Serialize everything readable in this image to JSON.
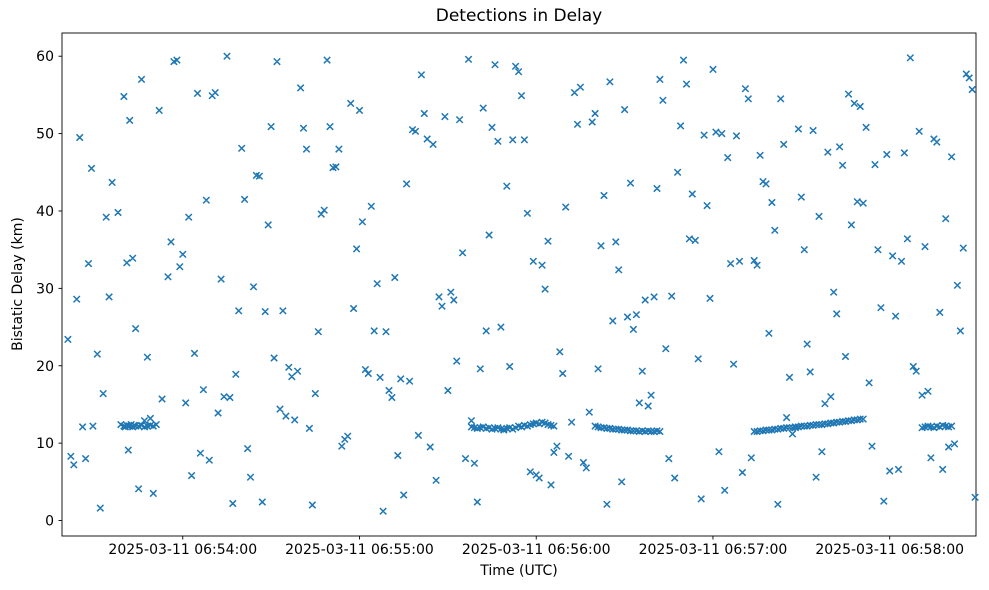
{
  "chart_data": {
    "type": "scatter",
    "title": "Detections in Delay",
    "xlabel": "Time (UTC)",
    "ylabel": "Bistatic Delay (km)",
    "marker": "x",
    "marker_color": "#1f77b4",
    "grid": false,
    "legend": null,
    "x_unit": "seconds since 2025-03-11 06:53:00 UTC",
    "xlim": [
      19,
      329.3
    ],
    "ylim": [
      -2,
      63
    ],
    "xticks": [
      {
        "value": 60,
        "label": "2025-03-11 06:54:00"
      },
      {
        "value": 120,
        "label": "2025-03-11 06:55:00"
      },
      {
        "value": 180,
        "label": "2025-03-11 06:56:00"
      },
      {
        "value": 240,
        "label": "2025-03-11 06:57:00"
      },
      {
        "value": 300,
        "label": "2025-03-11 06:58:00"
      }
    ],
    "yticks": [
      0,
      10,
      20,
      30,
      40,
      50,
      60
    ],
    "points": [
      [
        21,
        23.4
      ],
      [
        22,
        8.3
      ],
      [
        23,
        7.2
      ],
      [
        24,
        28.6
      ],
      [
        25,
        49.5
      ],
      [
        26,
        12.1
      ],
      [
        27,
        8.0
      ],
      [
        28,
        33.2
      ],
      [
        29,
        45.5
      ],
      [
        29.5,
        12.2
      ],
      [
        31,
        21.5
      ],
      [
        32,
        1.6
      ],
      [
        33,
        16.4
      ],
      [
        34,
        39.2
      ],
      [
        35,
        28.9
      ],
      [
        36,
        43.7
      ],
      [
        38,
        39.8
      ],
      [
        39,
        12.4
      ],
      [
        40,
        54.8
      ],
      [
        41,
        33.3
      ],
      [
        41.5,
        9.1
      ],
      [
        42,
        51.7
      ],
      [
        43,
        33.9
      ],
      [
        44,
        24.8
      ],
      [
        45,
        4.1
      ],
      [
        46,
        57.0
      ],
      [
        47,
        12.9
      ],
      [
        48,
        21.1
      ],
      [
        49,
        13.2
      ],
      [
        50,
        3.5
      ],
      [
        52,
        53.0
      ],
      [
        53,
        15.7
      ],
      [
        55,
        31.5
      ],
      [
        56,
        36.0
      ],
      [
        57,
        59.3
      ],
      [
        58,
        59.5
      ],
      [
        59,
        32.8
      ],
      [
        60,
        34.4
      ],
      [
        61,
        15.2
      ],
      [
        62,
        39.2
      ],
      [
        63,
        5.8
      ],
      [
        64,
        21.6
      ],
      [
        65,
        55.2
      ],
      [
        66,
        8.7
      ],
      [
        67,
        16.9
      ],
      [
        68,
        41.4
      ],
      [
        69,
        7.8
      ],
      [
        70,
        54.9
      ],
      [
        71,
        55.3
      ],
      [
        72,
        13.9
      ],
      [
        73,
        31.2
      ],
      [
        74,
        16.0
      ],
      [
        75,
        60.0
      ],
      [
        76,
        15.9
      ],
      [
        77,
        2.2
      ],
      [
        78,
        18.9
      ],
      [
        79,
        27.1
      ],
      [
        80,
        48.1
      ],
      [
        81,
        41.5
      ],
      [
        82,
        9.3
      ],
      [
        83,
        5.6
      ],
      [
        84,
        30.2
      ],
      [
        85,
        44.6
      ],
      [
        86,
        44.5
      ],
      [
        87,
        2.4
      ],
      [
        88,
        27.0
      ],
      [
        89,
        38.2
      ],
      [
        90,
        50.9
      ],
      [
        91,
        21.0
      ],
      [
        92,
        59.3
      ],
      [
        93,
        14.4
      ],
      [
        94,
        27.1
      ],
      [
        95,
        13.5
      ],
      [
        96,
        19.8
      ],
      [
        97,
        18.6
      ],
      [
        98,
        13.0
      ],
      [
        99,
        19.3
      ],
      [
        100,
        55.9
      ],
      [
        101,
        50.7
      ],
      [
        102,
        48.0
      ],
      [
        103,
        11.9
      ],
      [
        104,
        2.0
      ],
      [
        105,
        16.4
      ],
      [
        106,
        24.4
      ],
      [
        107,
        39.6
      ],
      [
        108,
        40.1
      ],
      [
        109,
        59.5
      ],
      [
        110,
        50.9
      ],
      [
        111,
        45.6
      ],
      [
        112,
        45.7
      ],
      [
        113,
        48.0
      ],
      [
        114,
        9.6
      ],
      [
        115,
        10.5
      ],
      [
        116,
        10.9
      ],
      [
        117,
        53.9
      ],
      [
        118,
        27.4
      ],
      [
        119,
        35.1
      ],
      [
        120,
        53.0
      ],
      [
        121,
        38.6
      ],
      [
        122,
        19.5
      ],
      [
        123,
        19.0
      ],
      [
        124,
        40.6
      ],
      [
        125,
        24.5
      ],
      [
        126,
        30.6
      ],
      [
        127,
        18.5
      ],
      [
        128,
        1.2
      ],
      [
        129,
        24.4
      ],
      [
        130,
        16.8
      ],
      [
        131,
        15.9
      ],
      [
        132,
        31.4
      ],
      [
        133,
        8.4
      ],
      [
        134,
        18.3
      ],
      [
        135,
        3.3
      ],
      [
        136,
        43.5
      ],
      [
        137,
        18.0
      ],
      [
        138,
        50.5
      ],
      [
        139,
        50.3
      ],
      [
        140,
        11.0
      ],
      [
        141,
        57.6
      ],
      [
        142,
        52.6
      ],
      [
        143,
        49.3
      ],
      [
        144,
        9.5
      ],
      [
        145,
        48.6
      ],
      [
        146,
        5.2
      ],
      [
        147,
        28.9
      ],
      [
        148,
        27.7
      ],
      [
        149,
        52.2
      ],
      [
        150,
        16.8
      ],
      [
        151,
        29.5
      ],
      [
        152,
        28.5
      ],
      [
        153,
        20.6
      ],
      [
        154,
        51.8
      ],
      [
        155,
        34.6
      ],
      [
        156,
        8.0
      ],
      [
        157,
        59.6
      ],
      [
        158,
        12.9
      ],
      [
        159,
        7.4
      ],
      [
        160,
        2.4
      ],
      [
        161,
        19.6
      ],
      [
        162,
        53.3
      ],
      [
        163,
        24.5
      ],
      [
        164,
        36.9
      ],
      [
        165,
        50.8
      ],
      [
        166,
        58.9
      ],
      [
        167,
        49.0
      ],
      [
        168,
        25.0
      ],
      [
        169,
        11.8
      ],
      [
        170,
        43.2
      ],
      [
        171,
        19.9
      ],
      [
        172,
        49.2
      ],
      [
        173,
        58.7
      ],
      [
        174,
        58.0
      ],
      [
        175,
        54.9
      ],
      [
        176,
        49.2
      ],
      [
        177,
        39.7
      ],
      [
        178,
        6.3
      ],
      [
        179,
        33.5
      ],
      [
        180,
        5.9
      ],
      [
        181,
        5.5
      ],
      [
        182,
        33.0
      ],
      [
        183,
        29.9
      ],
      [
        184,
        36.1
      ],
      [
        185,
        4.6
      ],
      [
        186,
        8.8
      ],
      [
        187,
        9.6
      ],
      [
        188,
        21.8
      ],
      [
        189,
        19.0
      ],
      [
        190,
        40.5
      ],
      [
        191,
        8.3
      ],
      [
        192,
        12.7
      ],
      [
        193,
        55.3
      ],
      [
        194,
        51.2
      ],
      [
        195,
        56.0
      ],
      [
        196,
        7.5
      ],
      [
        197,
        6.8
      ],
      [
        198,
        14.0
      ],
      [
        199,
        51.5
      ],
      [
        200,
        52.6
      ],
      [
        201,
        19.6
      ],
      [
        202,
        35.5
      ],
      [
        203,
        42.0
      ],
      [
        204,
        2.1
      ],
      [
        205,
        56.7
      ],
      [
        206,
        25.8
      ],
      [
        207,
        36.0
      ],
      [
        208,
        32.4
      ],
      [
        209,
        5.0
      ],
      [
        210,
        53.1
      ],
      [
        211,
        26.3
      ],
      [
        212,
        43.6
      ],
      [
        213,
        24.7
      ],
      [
        214,
        26.6
      ],
      [
        215,
        15.2
      ],
      [
        216,
        19.3
      ],
      [
        217,
        28.5
      ],
      [
        218,
        14.8
      ],
      [
        219,
        16.2
      ],
      [
        220,
        28.9
      ],
      [
        221,
        42.9
      ],
      [
        222,
        57.0
      ],
      [
        223,
        54.3
      ],
      [
        224,
        22.2
      ],
      [
        225,
        8.0
      ],
      [
        226,
        29.0
      ],
      [
        227,
        5.5
      ],
      [
        228,
        45.0
      ],
      [
        229,
        51.0
      ],
      [
        230,
        59.5
      ],
      [
        231,
        56.4
      ],
      [
        232,
        36.4
      ],
      [
        233,
        42.2
      ],
      [
        234,
        36.2
      ],
      [
        235,
        20.9
      ],
      [
        236,
        2.8
      ],
      [
        237,
        49.8
      ],
      [
        238,
        40.7
      ],
      [
        239,
        28.7
      ],
      [
        240,
        58.3
      ],
      [
        241,
        50.2
      ],
      [
        242,
        8.9
      ],
      [
        243,
        50.0
      ],
      [
        244,
        3.9
      ],
      [
        245,
        46.9
      ],
      [
        246,
        33.2
      ],
      [
        247,
        20.2
      ],
      [
        248,
        49.7
      ],
      [
        249,
        33.5
      ],
      [
        250,
        6.2
      ],
      [
        251,
        55.8
      ],
      [
        252,
        54.5
      ],
      [
        253,
        8.1
      ],
      [
        254,
        33.6
      ],
      [
        255,
        33.0
      ],
      [
        256,
        47.2
      ],
      [
        257,
        43.8
      ],
      [
        258,
        43.5
      ],
      [
        259,
        24.2
      ],
      [
        260,
        41.1
      ],
      [
        261,
        37.5
      ],
      [
        262,
        2.1
      ],
      [
        263,
        54.5
      ],
      [
        264,
        48.6
      ],
      [
        265,
        13.3
      ],
      [
        266,
        18.5
      ],
      [
        267,
        11.2
      ],
      [
        268,
        12.0
      ],
      [
        269,
        50.6
      ],
      [
        270,
        41.8
      ],
      [
        271,
        35.0
      ],
      [
        272,
        22.8
      ],
      [
        273,
        19.2
      ],
      [
        274,
        50.4
      ],
      [
        275,
        5.6
      ],
      [
        276,
        39.3
      ],
      [
        277,
        8.9
      ],
      [
        278,
        15.1
      ],
      [
        279,
        47.6
      ],
      [
        280,
        16.0
      ],
      [
        281,
        29.5
      ],
      [
        282,
        26.7
      ],
      [
        283,
        48.3
      ],
      [
        284,
        45.9
      ],
      [
        285,
        21.2
      ],
      [
        286,
        55.1
      ],
      [
        287,
        38.2
      ],
      [
        288,
        53.9
      ],
      [
        289,
        41.2
      ],
      [
        290,
        53.5
      ],
      [
        291,
        41.0
      ],
      [
        292,
        50.8
      ],
      [
        293,
        17.8
      ],
      [
        294,
        9.6
      ],
      [
        295,
        46.0
      ],
      [
        296,
        35.0
      ],
      [
        297,
        27.5
      ],
      [
        298,
        2.5
      ],
      [
        299,
        47.3
      ],
      [
        300,
        6.4
      ],
      [
        301,
        34.2
      ],
      [
        302,
        26.4
      ],
      [
        303,
        6.6
      ],
      [
        304,
        33.5
      ],
      [
        305,
        47.5
      ],
      [
        306,
        36.4
      ],
      [
        307,
        59.8
      ],
      [
        308,
        19.9
      ],
      [
        309,
        19.3
      ],
      [
        310,
        50.3
      ],
      [
        311,
        16.2
      ],
      [
        312,
        35.4
      ],
      [
        313,
        16.7
      ],
      [
        314,
        8.1
      ],
      [
        315,
        49.3
      ],
      [
        316,
        48.9
      ],
      [
        317,
        26.9
      ],
      [
        318,
        6.6
      ],
      [
        319,
        39.0
      ],
      [
        320,
        9.5
      ],
      [
        321,
        47.0
      ],
      [
        322,
        9.9
      ],
      [
        323,
        30.4
      ],
      [
        324,
        24.5
      ],
      [
        325,
        35.2
      ],
      [
        326,
        57.7
      ],
      [
        327,
        57.2
      ],
      [
        328,
        55.7
      ],
      [
        329,
        3.0
      ],
      [
        40,
        12.2
      ],
      [
        40.5,
        12.1
      ],
      [
        41,
        12.3
      ],
      [
        41.5,
        12.2
      ],
      [
        42,
        12.2
      ],
      [
        42.5,
        12.4
      ],
      [
        43,
        12.1
      ],
      [
        43.5,
        12.3
      ],
      [
        44,
        12.2
      ],
      [
        45,
        12.2
      ],
      [
        46,
        12.3
      ],
      [
        47,
        12.1
      ],
      [
        48,
        12.2
      ],
      [
        49,
        12.3
      ],
      [
        50,
        12.2
      ],
      [
        51,
        12.4
      ],
      [
        158,
        12.1
      ],
      [
        159,
        12.0
      ],
      [
        160,
        11.9
      ],
      [
        161,
        12.0
      ],
      [
        162,
        12.1
      ],
      [
        163,
        11.9
      ],
      [
        164,
        12.0
      ],
      [
        165,
        11.8
      ],
      [
        166,
        11.9
      ],
      [
        167,
        12.0
      ],
      [
        168,
        11.8
      ],
      [
        169,
        11.7
      ],
      [
        170,
        11.9
      ],
      [
        171,
        12.0
      ],
      [
        172,
        11.8
      ],
      [
        173,
        12.0
      ],
      [
        174,
        12.2
      ],
      [
        175,
        12.1
      ],
      [
        176,
        12.3
      ],
      [
        177,
        12.2
      ],
      [
        178,
        12.4
      ],
      [
        179,
        12.5
      ],
      [
        180,
        12.6
      ],
      [
        181,
        12.5
      ],
      [
        182,
        12.7
      ],
      [
        183,
        12.6
      ],
      [
        184,
        12.4
      ],
      [
        185,
        12.3
      ],
      [
        186,
        12.2
      ],
      [
        200,
        12.2
      ],
      [
        201,
        12.1
      ],
      [
        202,
        12.0
      ],
      [
        203,
        12.0
      ],
      [
        204,
        11.9
      ],
      [
        205,
        11.9
      ],
      [
        206,
        11.8
      ],
      [
        207,
        11.8
      ],
      [
        208,
        11.8
      ],
      [
        209,
        11.7
      ],
      [
        210,
        11.7
      ],
      [
        211,
        11.7
      ],
      [
        212,
        11.6
      ],
      [
        213,
        11.6
      ],
      [
        214,
        11.6
      ],
      [
        215,
        11.5
      ],
      [
        216,
        11.6
      ],
      [
        217,
        11.5
      ],
      [
        218,
        11.6
      ],
      [
        219,
        11.5
      ],
      [
        220,
        11.5
      ],
      [
        221,
        11.6
      ],
      [
        222,
        11.5
      ],
      [
        254,
        11.5
      ],
      [
        255,
        11.5
      ],
      [
        256,
        11.6
      ],
      [
        257,
        11.6
      ],
      [
        258,
        11.7
      ],
      [
        259,
        11.7
      ],
      [
        260,
        11.7
      ],
      [
        261,
        11.8
      ],
      [
        262,
        11.8
      ],
      [
        263,
        11.9
      ],
      [
        264,
        11.9
      ],
      [
        265,
        12.0
      ],
      [
        266,
        12.0
      ],
      [
        267,
        12.0
      ],
      [
        268,
        12.1
      ],
      [
        269,
        12.1
      ],
      [
        270,
        12.2
      ],
      [
        271,
        12.2
      ],
      [
        272,
        12.2
      ],
      [
        273,
        12.3
      ],
      [
        274,
        12.3
      ],
      [
        275,
        12.4
      ],
      [
        276,
        12.4
      ],
      [
        277,
        12.4
      ],
      [
        278,
        12.5
      ],
      [
        279,
        12.5
      ],
      [
        280,
        12.6
      ],
      [
        281,
        12.6
      ],
      [
        282,
        12.7
      ],
      [
        283,
        12.7
      ],
      [
        284,
        12.8
      ],
      [
        285,
        12.8
      ],
      [
        286,
        12.9
      ],
      [
        287,
        12.9
      ],
      [
        288,
        13.0
      ],
      [
        289,
        13.0
      ],
      [
        290,
        13.1
      ],
      [
        291,
        13.1
      ],
      [
        311,
        12.0
      ],
      [
        312,
        12.1
      ],
      [
        313,
        12.2
      ],
      [
        314,
        12.1
      ],
      [
        315,
        12.0
      ],
      [
        316,
        12.2
      ],
      [
        317,
        12.1
      ],
      [
        318,
        12.3
      ],
      [
        319,
        12.2
      ],
      [
        320,
        12.1
      ],
      [
        321,
        12.2
      ]
    ]
  }
}
